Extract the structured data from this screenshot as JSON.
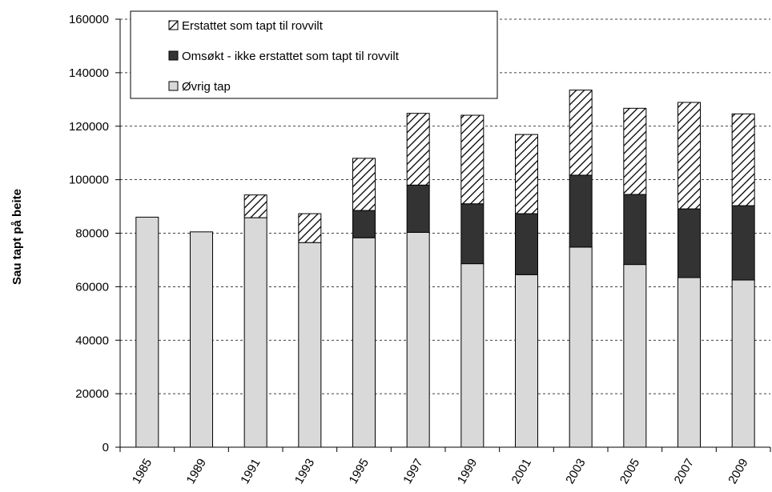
{
  "chart_data": {
    "type": "bar",
    "stacked": true,
    "categories": [
      "1985",
      "1989",
      "1991",
      "1993",
      "1995",
      "1997",
      "1999",
      "2001",
      "2003",
      "2005",
      "2007",
      "2009"
    ],
    "series": [
      {
        "name": "Øvrig tap",
        "values": [
          86000,
          80500,
          85800,
          76500,
          78300,
          80300,
          68600,
          64500,
          74800,
          68300,
          63400,
          62500
        ],
        "color": "#d9d9d9",
        "pattern": "solid"
      },
      {
        "name": "Omsøkt - ikke erstattet som tapt til rovvilt",
        "values": [
          0,
          0,
          0,
          0,
          10200,
          17700,
          22400,
          22800,
          26900,
          26200,
          25700,
          27800
        ],
        "color": "#333333",
        "pattern": "solid"
      },
      {
        "name": "Erstattet som tapt til rovvilt",
        "values": [
          0,
          0,
          8500,
          10800,
          19500,
          26800,
          33100,
          29600,
          31800,
          32200,
          39800,
          34300
        ],
        "color": "#ffffff",
        "pattern": "diagonal-hatch"
      }
    ],
    "legend_order": [
      "Erstattet som tapt til rovvilt",
      "Omsøkt - ikke erstattet som tapt til rovvilt",
      "Øvrig tap"
    ],
    "ylabel": "Sau tapt på beite",
    "xlabel": "",
    "ylim": [
      0,
      160000
    ],
    "yticks": [
      0,
      20000,
      40000,
      60000,
      80000,
      100000,
      120000,
      140000,
      160000
    ],
    "grid": "horizontal dashed",
    "legend_position": "top-left"
  }
}
